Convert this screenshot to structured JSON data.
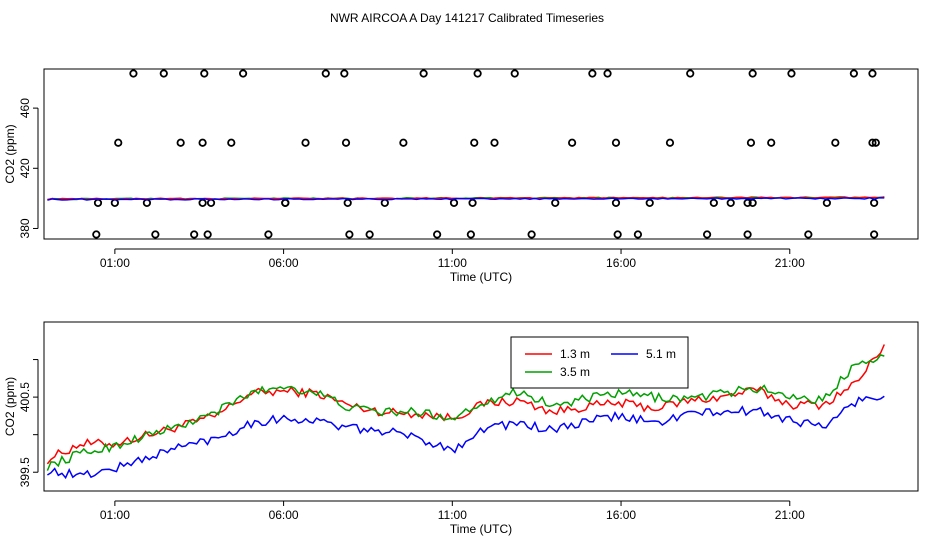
{
  "title": "NWR AIRCOA A  Day 141217  Calibrated Timeseries",
  "chart_data": [
    {
      "type": "scatter",
      "xlabel": "Time (UTC)",
      "ylabel": "CO2 (ppm)",
      "xticks": [
        {
          "x": 1,
          "label": "01:00"
        },
        {
          "x": 6,
          "label": "06:00"
        },
        {
          "x": 11,
          "label": "11:00"
        },
        {
          "x": 16,
          "label": "16:00"
        },
        {
          "x": 21,
          "label": "21:00"
        }
      ],
      "yticks": [
        {
          "y": 380,
          "label": "380"
        },
        {
          "y": 420,
          "label": "420"
        },
        {
          "y": 460,
          "label": "460"
        }
      ],
      "xlim": [
        -1.1,
        24.8
      ],
      "ylim": [
        373,
        486
      ],
      "series": [
        {
          "color": "#000000",
          "style": "open-circle",
          "x": [
            0.45,
            0.5,
            1.0,
            1.1,
            1.55,
            1.95,
            2.2,
            2.45,
            2.95,
            3.35,
            3.6,
            3.6,
            3.65,
            3.75,
            3.85,
            4.45,
            4.8,
            5.55,
            6.05,
            6.05,
            6.65,
            7.25,
            7.8,
            7.85,
            7.9,
            7.95,
            8.55,
            9.0,
            9.55,
            10.15,
            10.55,
            11.05,
            11.55,
            11.6,
            11.65,
            11.75,
            12.25,
            12.85,
            13.35,
            14.05,
            14.55,
            15.15,
            15.6,
            15.85,
            15.85,
            15.9,
            16.5,
            16.85,
            17.45,
            18.05,
            18.55,
            18.75,
            19.25,
            19.75,
            19.75,
            19.85,
            19.9,
            19.9,
            20.45,
            21.05,
            21.55,
            22.1,
            22.35,
            22.9,
            23.45,
            23.45,
            23.5,
            23.5,
            23.55
          ],
          "y": [
            376,
            397,
            397,
            437,
            483,
            397,
            376,
            483,
            437,
            376,
            397,
            437,
            483,
            376,
            397,
            437,
            483,
            376,
            397,
            397,
            437,
            483,
            483,
            437,
            397,
            376,
            376,
            397,
            437,
            483,
            376,
            397,
            376,
            397,
            437,
            483,
            437,
            483,
            376,
            397,
            437,
            483,
            483,
            437,
            397,
            376,
            376,
            397,
            437,
            483,
            376,
            397,
            397,
            376,
            397,
            437,
            397,
            483,
            437,
            483,
            376,
            397,
            437,
            483,
            483,
            437,
            397,
            376,
            437
          ]
        },
        {
          "color": "#00a000",
          "style": "line",
          "x": [
            -1,
            23.8
          ],
          "y": [
            399.6,
            400.7
          ]
        },
        {
          "color": "#ff0000",
          "style": "line",
          "x": [
            -1,
            23.8
          ],
          "y": [
            399.6,
            400.6
          ]
        },
        {
          "color": "#0000ff",
          "style": "line",
          "x": [
            -1,
            23.8
          ],
          "y": [
            399.2,
            400.0
          ]
        }
      ]
    },
    {
      "type": "line",
      "xlabel": "Time (UTC)",
      "ylabel": "CO2 (ppm)",
      "xticks": [
        {
          "x": 1,
          "label": "01:00"
        },
        {
          "x": 6,
          "label": "06:00"
        },
        {
          "x": 11,
          "label": "11:00"
        },
        {
          "x": 16,
          "label": "16:00"
        },
        {
          "x": 21,
          "label": "21:00"
        }
      ],
      "yticks": [
        {
          "y": 399.5,
          "label": "399.5"
        },
        {
          "y": 400.0,
          "label": ""
        },
        {
          "y": 400.5,
          "label": "400.5"
        },
        {
          "y": 401.0,
          "label": ""
        }
      ],
      "xlim": [
        -1.1,
        24.8
      ],
      "ylim": [
        399.25,
        401.5
      ],
      "legend": "top-center",
      "x": [
        -1,
        0,
        1,
        2,
        3,
        4,
        5,
        6,
        7,
        8,
        9,
        10,
        11,
        12,
        13,
        14,
        15,
        16,
        17,
        18,
        19,
        20,
        21,
        22,
        23,
        23.8
      ],
      "series": [
        {
          "name": "1.3 m",
          "color": "#ff0000",
          "values": [
            399.67,
            399.88,
            399.88,
            400.0,
            400.12,
            400.25,
            400.55,
            400.58,
            400.55,
            400.38,
            400.3,
            400.28,
            400.22,
            400.42,
            400.45,
            400.3,
            400.38,
            400.42,
            400.35,
            400.45,
            400.5,
            400.6,
            400.4,
            400.4,
            400.7,
            401.2
          ]
        },
        {
          "name": "3.5 m",
          "color": "#00a000",
          "values": [
            399.58,
            399.75,
            399.85,
            400.0,
            400.12,
            400.3,
            400.55,
            400.65,
            400.55,
            400.35,
            400.3,
            400.3,
            400.22,
            400.45,
            400.58,
            400.38,
            400.48,
            400.55,
            400.5,
            400.48,
            400.55,
            400.62,
            400.52,
            400.45,
            400.98,
            401.05
          ]
        },
        {
          "name": "5.1 m",
          "color": "#0000ff",
          "values": [
            399.52,
            399.45,
            399.55,
            399.7,
            399.85,
            399.95,
            400.15,
            400.22,
            400.18,
            400.08,
            400.05,
            399.95,
            399.8,
            400.1,
            400.15,
            400.05,
            400.18,
            400.25,
            400.15,
            400.28,
            400.3,
            400.32,
            400.2,
            400.1,
            400.45,
            400.52
          ]
        }
      ]
    }
  ]
}
